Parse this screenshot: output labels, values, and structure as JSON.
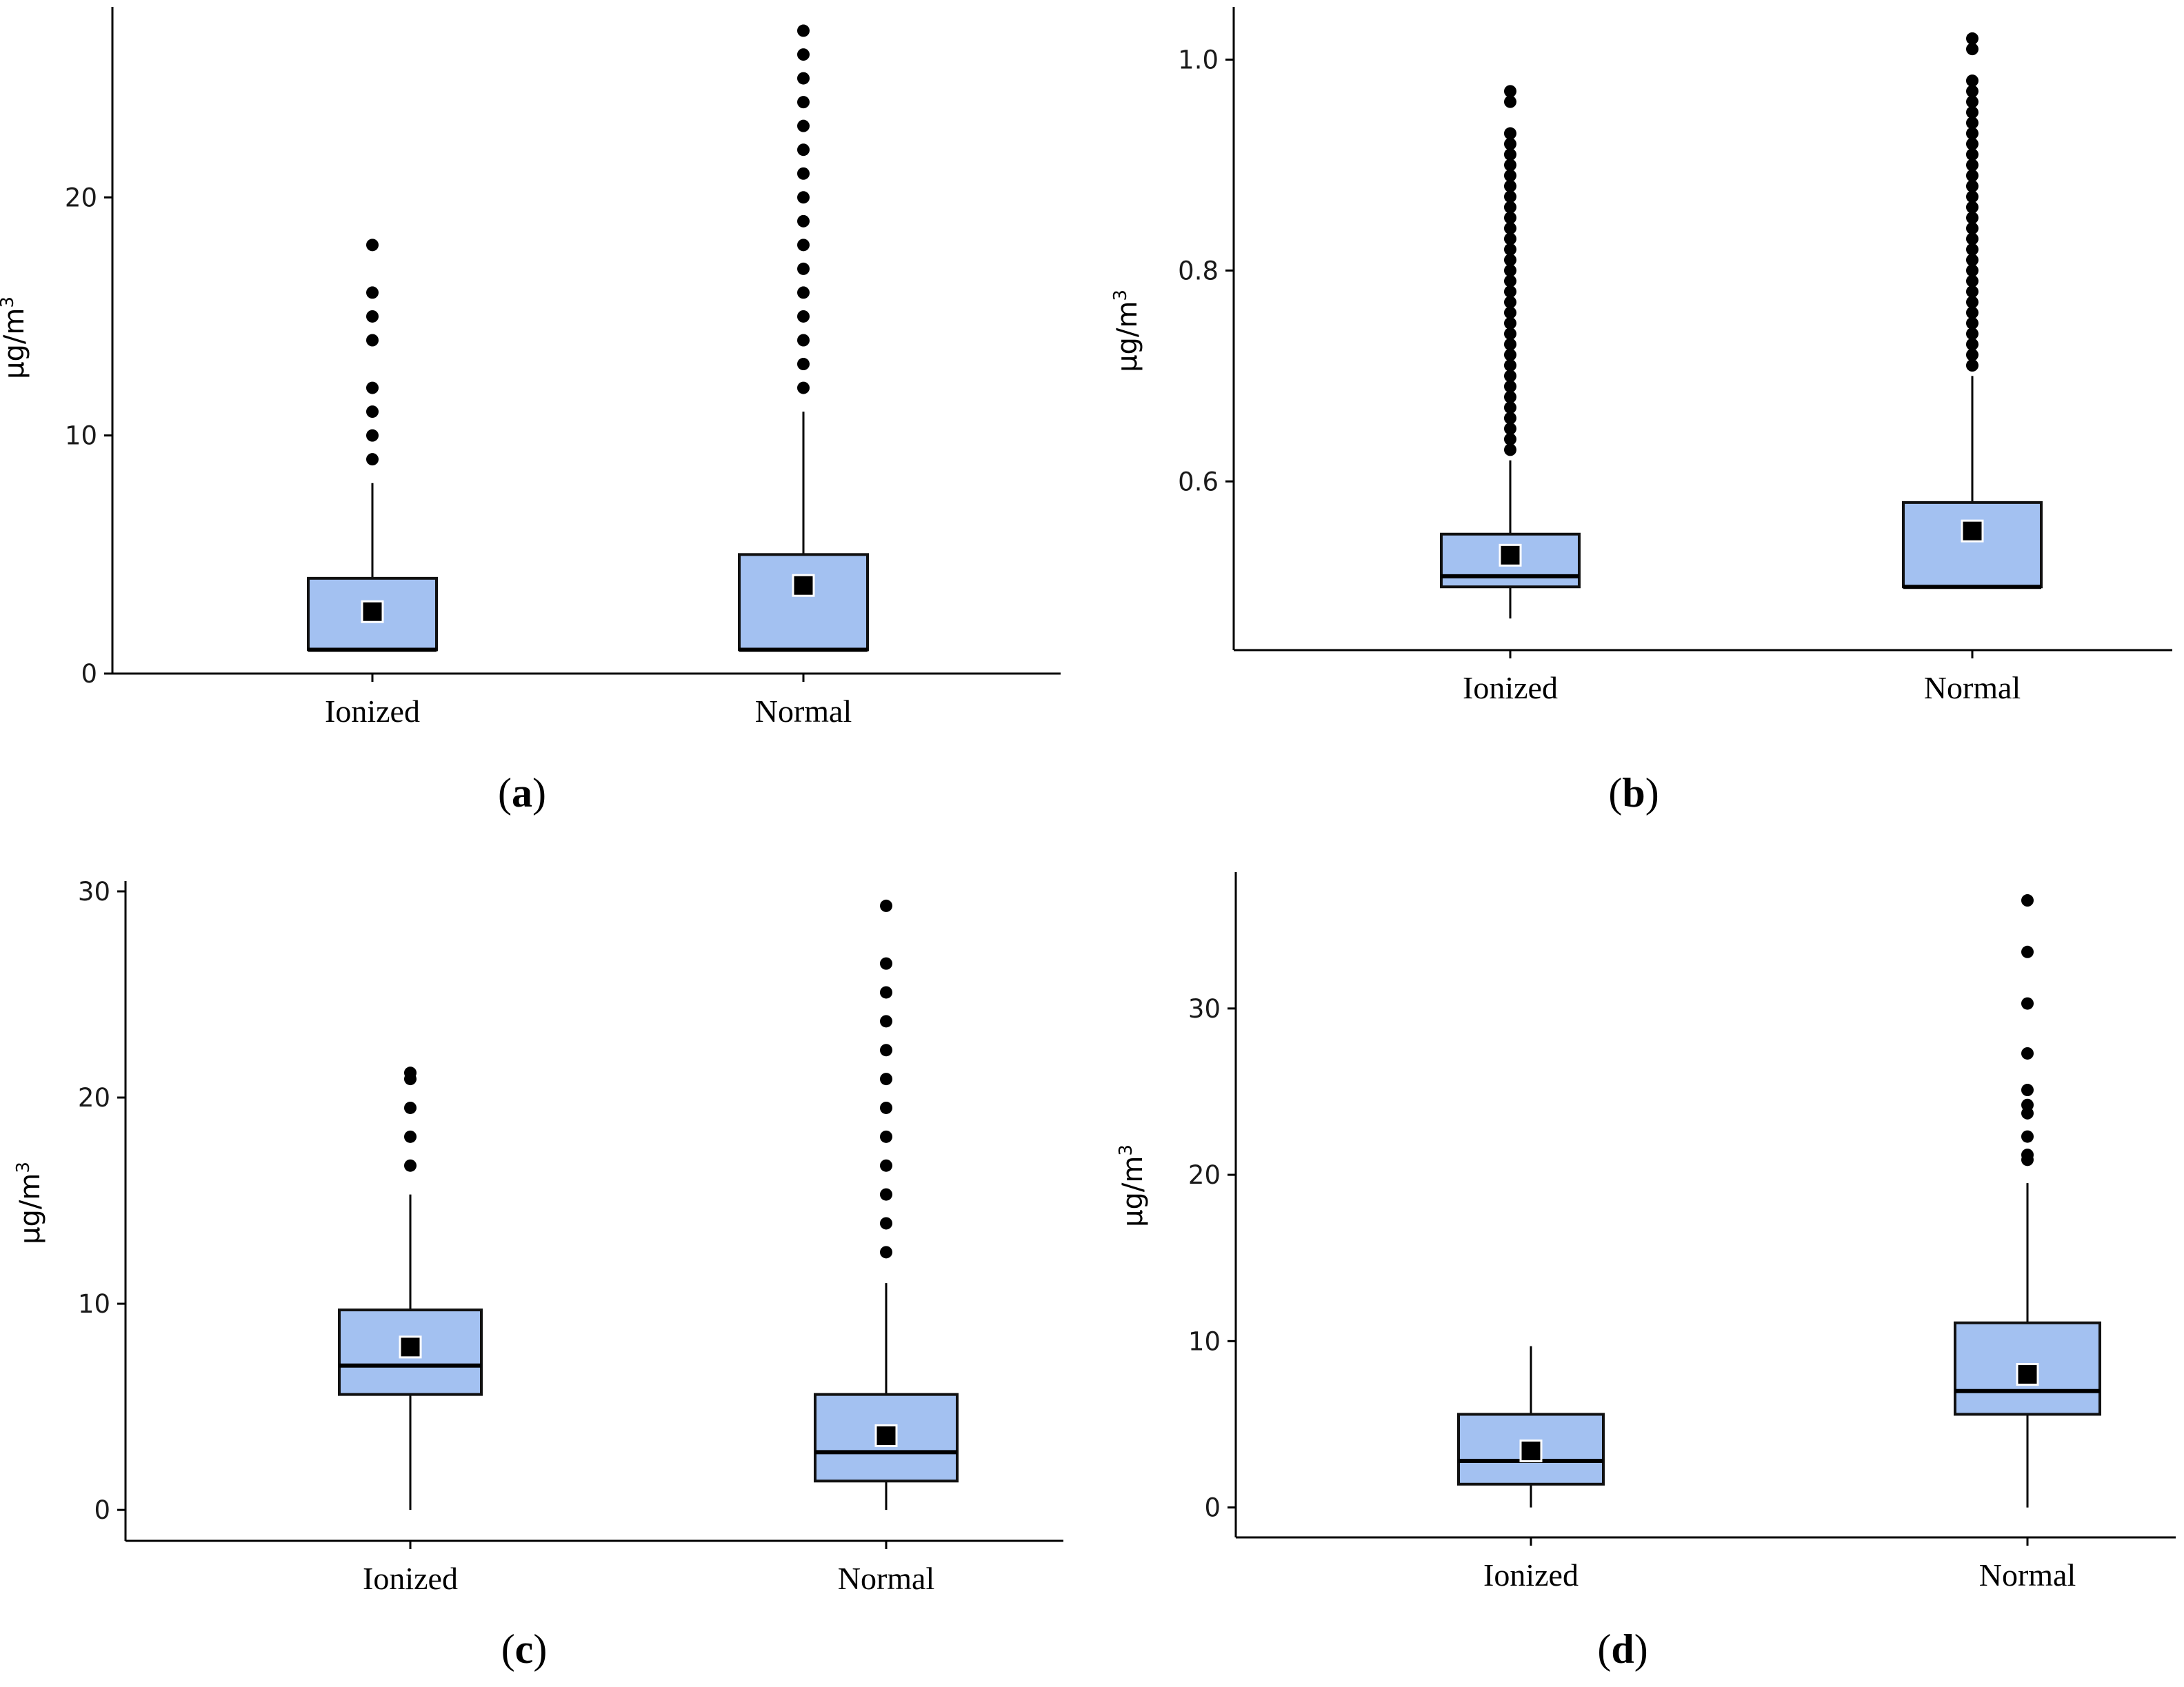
{
  "chart_data": [
    {
      "panel": "a",
      "type": "box",
      "ylabel": "µg/m",
      "ylabel_sup": "3",
      "ylim": [
        0,
        28
      ],
      "yticks": [
        0,
        10,
        20
      ],
      "categories": [
        "Ionized",
        "Normal"
      ],
      "boxes": [
        {
          "category": "Ionized",
          "whisker_low": 1,
          "q1": 1,
          "median": 1,
          "q3": 4,
          "whisker_high": 8,
          "mean": 2.6,
          "outliers": [
            9,
            10,
            11,
            12,
            14,
            15,
            16,
            18
          ]
        },
        {
          "category": "Normal",
          "whisker_low": 1,
          "q1": 1,
          "median": 1,
          "q3": 5,
          "whisker_high": 11,
          "mean": 3.7,
          "outliers": [
            12,
            13,
            14,
            15,
            16,
            17,
            18,
            19,
            20,
            21,
            22,
            23,
            24,
            25,
            26,
            27
          ]
        }
      ],
      "label": "a"
    },
    {
      "panel": "b",
      "type": "box",
      "ylabel": "µg/m",
      "ylabel_sup": "3",
      "ylim": [
        0.44,
        1.05
      ],
      "yticks": [
        0.6,
        0.8,
        1.0
      ],
      "ytick_labels": [
        "0.6",
        "0.8",
        "1.0"
      ],
      "categories": [
        "Ionized",
        "Normal"
      ],
      "boxes": [
        {
          "category": "Ionized",
          "whisker_low": 0.47,
          "q1": 0.5,
          "median": 0.51,
          "q3": 0.55,
          "whisker_high": 0.62,
          "mean": 0.53,
          "outliers": [
            0.63,
            0.64,
            0.65,
            0.66,
            0.67,
            0.68,
            0.69,
            0.7,
            0.71,
            0.72,
            0.73,
            0.74,
            0.75,
            0.76,
            0.77,
            0.78,
            0.79,
            0.8,
            0.81,
            0.82,
            0.83,
            0.84,
            0.85,
            0.86,
            0.87,
            0.88,
            0.89,
            0.9,
            0.91,
            0.92,
            0.93,
            0.96,
            0.97
          ]
        },
        {
          "category": "Normal",
          "whisker_low": 0.5,
          "q1": 0.5,
          "median": 0.5,
          "q3": 0.58,
          "whisker_high": 0.7,
          "mean": 0.553,
          "outliers": [
            0.71,
            0.72,
            0.73,
            0.74,
            0.75,
            0.76,
            0.77,
            0.78,
            0.79,
            0.8,
            0.81,
            0.82,
            0.83,
            0.84,
            0.85,
            0.86,
            0.87,
            0.88,
            0.89,
            0.9,
            0.91,
            0.92,
            0.93,
            0.94,
            0.95,
            0.96,
            0.97,
            0.98,
            1.01,
            1.02
          ]
        }
      ],
      "label": "b"
    },
    {
      "panel": "c",
      "type": "box",
      "ylabel": "µg/m",
      "ylabel_sup": "3",
      "ylim": [
        -1.5,
        30.5
      ],
      "yticks": [
        0,
        10,
        20,
        30
      ],
      "categories": [
        "Ionized",
        "Normal"
      ],
      "boxes": [
        {
          "category": "Ionized",
          "whisker_low": 0,
          "q1": 5.6,
          "median": 7,
          "q3": 9.7,
          "whisker_high": 15.3,
          "mean": 7.9,
          "outliers": [
            16.7,
            18.1,
            19.5,
            20.9,
            21.2
          ]
        },
        {
          "category": "Normal",
          "whisker_low": 0,
          "q1": 1.4,
          "median": 2.8,
          "q3": 5.6,
          "whisker_high": 11,
          "mean": 3.6,
          "outliers": [
            12.5,
            13.9,
            15.3,
            16.7,
            18.1,
            19.5,
            20.9,
            22.3,
            23.7,
            25.1,
            26.5,
            29.3
          ]
        }
      ],
      "label": "c"
    },
    {
      "panel": "d",
      "type": "box",
      "ylabel": "µg/m",
      "ylabel_sup": "3",
      "ylim": [
        -1.8,
        38.2
      ],
      "yticks": [
        0,
        10,
        20,
        30
      ],
      "categories": [
        "Ionized",
        "Normal"
      ],
      "boxes": [
        {
          "category": "Ionized",
          "whisker_low": 0,
          "q1": 1.4,
          "median": 2.8,
          "q3": 5.6,
          "whisker_high": 9.7,
          "mean": 3.4,
          "outliers": []
        },
        {
          "category": "Normal",
          "whisker_low": 0,
          "q1": 5.6,
          "median": 7,
          "q3": 11.1,
          "whisker_high": 19.5,
          "mean": 8,
          "outliers": [
            20.9,
            21.2,
            22.3,
            23.7,
            24.2,
            25.1,
            27.3,
            30.3,
            33.4,
            36.5
          ]
        }
      ],
      "label": "d"
    }
  ]
}
